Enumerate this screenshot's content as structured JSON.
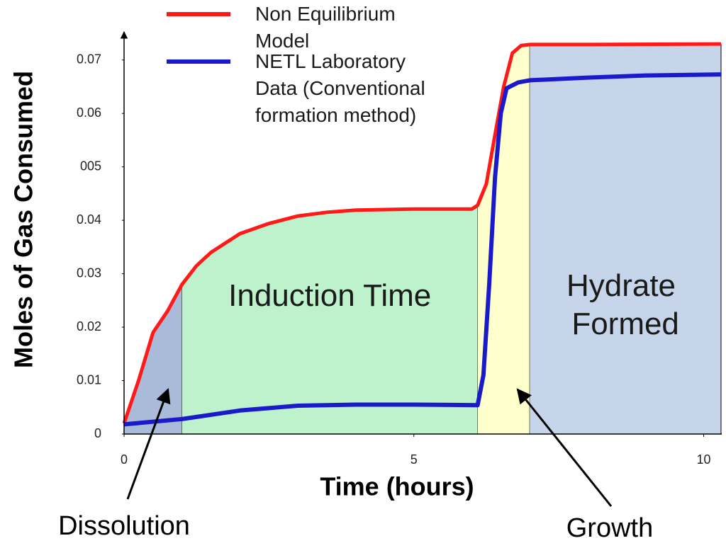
{
  "chart_data": {
    "type": "line",
    "xlabel": "Time (hours)",
    "ylabel": "Moles of Gas Consumed",
    "xlim": [
      0,
      10.3
    ],
    "ylim": [
      0,
      0.075
    ],
    "xticks": [
      0,
      5,
      10
    ],
    "yticks": [
      0,
      0.01,
      0.02,
      0.03,
      0.04,
      {
        "value": 0.05,
        "label": "005"
      },
      0.06,
      0.07
    ],
    "legend": "top-left",
    "series": [
      {
        "name": "Non Equilibrium Model",
        "color": "#ff1a1a",
        "x": [
          0,
          0.25,
          0.5,
          0.75,
          1,
          1.25,
          1.5,
          2,
          2.5,
          3,
          3.5,
          4,
          5,
          6,
          6.1,
          6.25,
          6.4,
          6.55,
          6.7,
          6.85,
          7,
          8,
          10.3
        ],
        "values": [
          0.002,
          0.01,
          0.019,
          0.023,
          0.028,
          0.0315,
          0.034,
          0.0375,
          0.0394,
          0.0408,
          0.0415,
          0.0419,
          0.0421,
          0.0421,
          0.0428,
          0.0468,
          0.056,
          0.065,
          0.0713,
          0.0727,
          0.0729,
          0.0729,
          0.073
        ]
      },
      {
        "name": "NETL Laboratory Data (Conventional formation method)",
        "color": "#1a1acc",
        "x": [
          0,
          1,
          2,
          3,
          3.5,
          4,
          5,
          6.1,
          6.2,
          6.3,
          6.4,
          6.5,
          6.6,
          6.8,
          7,
          8,
          9,
          10.3
        ],
        "values": [
          0.0018,
          0.0028,
          0.0044,
          0.0053,
          0.0054,
          0.0055,
          0.0055,
          0.0054,
          0.011,
          0.028,
          0.048,
          0.06,
          0.0647,
          0.0658,
          0.0662,
          0.0667,
          0.0671,
          0.0673
        ]
      }
    ],
    "regions": [
      {
        "label": "Dissolution",
        "start": 0,
        "end": 1,
        "color": "#a9bbd9"
      },
      {
        "label": "Induction Time",
        "start": 1,
        "end": 6.1,
        "color": "#bdf2cc"
      },
      {
        "label": "Growth",
        "start": 6.1,
        "end": 7,
        "color": "#ffffcc"
      },
      {
        "label": "Hydrate Formed",
        "start": 7,
        "end": 10.3,
        "color": "#c7d5ea"
      }
    ]
  }
}
